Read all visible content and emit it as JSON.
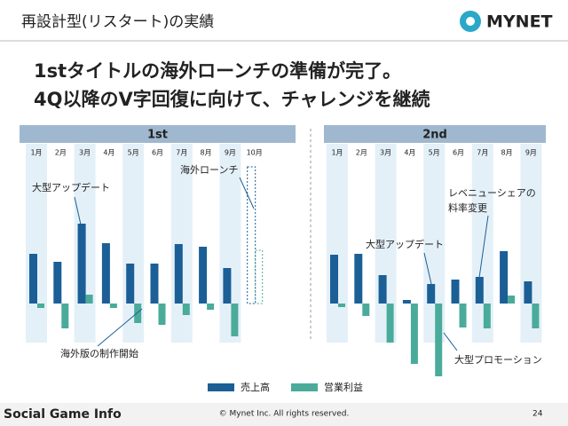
{
  "header": {
    "title": "再設計型(リスタート)の実績",
    "logo": "MYNET"
  },
  "headline": [
    "1stタイトルの海外ローンチの準備が完了。",
    "4Q以降のV字回復に向けて、チャレンジを継続"
  ],
  "chart_data": [
    {
      "type": "bar",
      "title": "1st",
      "categories": [
        "1月",
        "2月",
        "3月",
        "4月",
        "5月",
        "6月",
        "7月",
        "8月",
        "9月",
        "10月"
      ],
      "series": [
        {
          "name": "売上高",
          "color": "#1b5f96",
          "values": [
            56,
            47,
            90,
            68,
            45,
            45,
            67,
            64,
            40,
            154
          ]
        },
        {
          "name": "営業利益",
          "color": "#4aab9b",
          "values": [
            -5,
            -28,
            10,
            -5,
            -22,
            -24,
            -13,
            -7,
            -37,
            60
          ]
        }
      ],
      "dashed_from": 9,
      "annotations": [
        "大型アップデート",
        "海外ローンチ",
        "海外版の制作開始"
      ]
    },
    {
      "type": "bar",
      "title": "2nd",
      "categories": [
        "1月",
        "2月",
        "3月",
        "4月",
        "5月",
        "6月",
        "7月",
        "8月",
        "9月"
      ],
      "series": [
        {
          "name": "売上高",
          "color": "#1b5f96",
          "values": [
            55,
            56,
            32,
            4,
            22,
            27,
            30,
            59,
            25
          ]
        },
        {
          "name": "営業利益",
          "color": "#4aab9b",
          "values": [
            -4,
            -14,
            -44,
            -68,
            -82,
            -27,
            -28,
            9,
            -28
          ]
        }
      ],
      "annotations": [
        [
          "レベニューシェアの",
          "料率変更"
        ],
        "大型アップデート",
        "大型プロモーション"
      ]
    }
  ],
  "footer": {
    "watermark": "Social Game Info",
    "copyright": "© Mynet Inc. All rights reserved.",
    "page": "24"
  }
}
